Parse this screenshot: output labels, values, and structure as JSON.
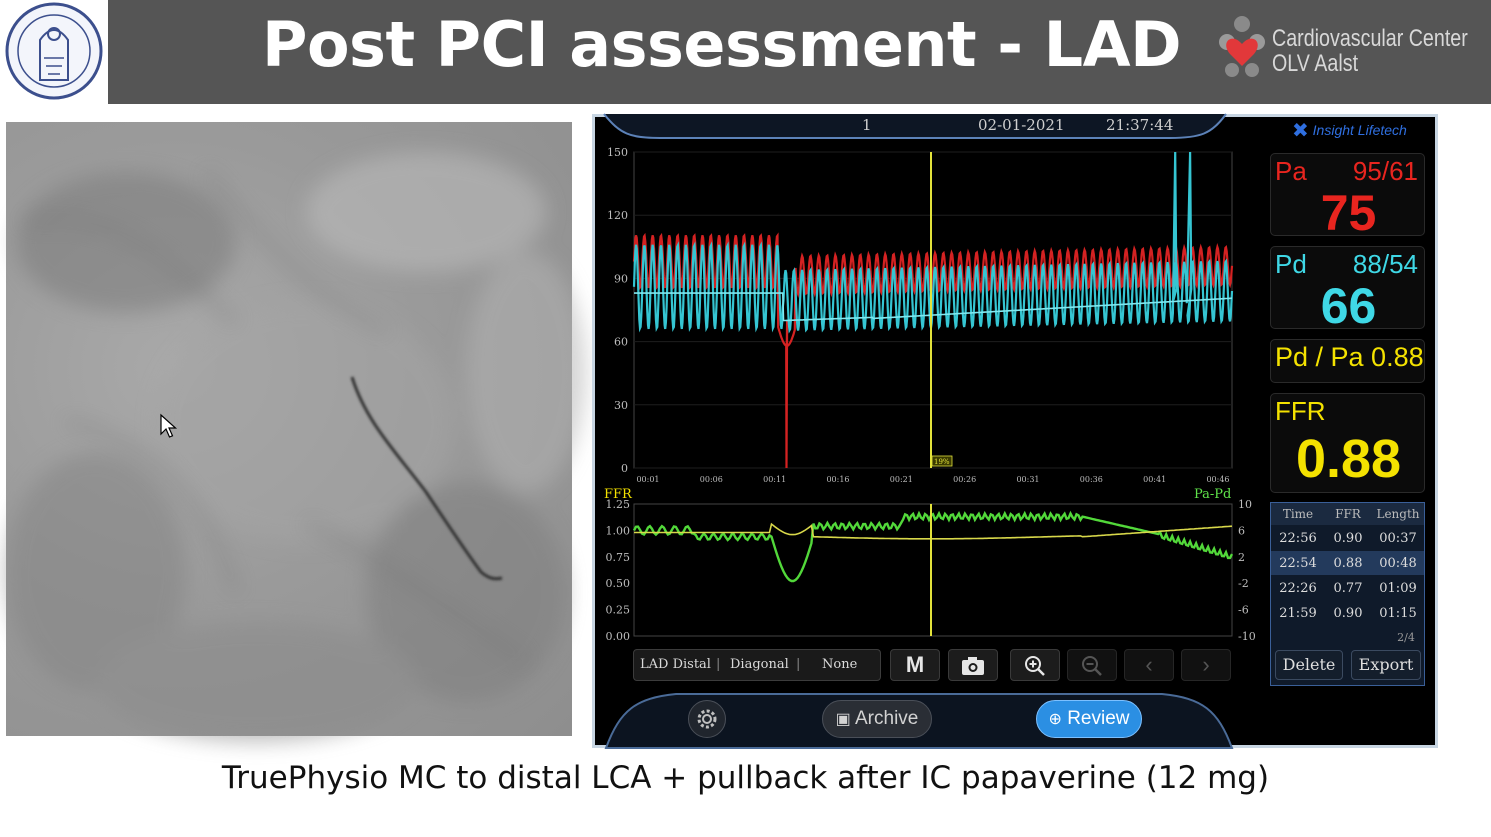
{
  "slide": {
    "title": "Post PCI assessment - LAD",
    "center_name_line1": "Cardiovascular Center",
    "center_name_line2": "OLV Aalst",
    "caption": "TruePhysio MC to distal LCA + pullback after IC papaverine (12 mg)"
  },
  "device": {
    "top_bar": {
      "index": "1",
      "date": "02-01-2021",
      "time": "21:37:44"
    },
    "brand": "Insight Lifetech",
    "pa": {
      "label": "Pa",
      "sys_dia": "95/61",
      "mean": "75",
      "color": "#e8251f"
    },
    "pd": {
      "label": "Pd",
      "sys_dia": "88/54",
      "mean": "66",
      "color": "#3fd8e6"
    },
    "pdpa": {
      "text": "Pd / Pa 0.88"
    },
    "ffr": {
      "label": "FFR",
      "value": "0.88",
      "color": "#f4e200"
    },
    "pressure_axis": [
      "150",
      "120",
      "90",
      "60",
      "30",
      "0"
    ],
    "time_axis": [
      "00:01",
      "00:06",
      "00:11",
      "00:16",
      "00:21",
      "00:26",
      "00:31",
      "00:36",
      "00:41",
      "00:46"
    ],
    "marker_label": "19%",
    "ffr_axis_title": "FFR",
    "pa_pd_axis_title": "Pa-Pd",
    "ffr_axis": [
      "1.25",
      "1.00",
      "0.75",
      "0.50",
      "0.25",
      "0.00"
    ],
    "pa_pd_axis": [
      "10",
      "6",
      "2",
      "-2",
      "-6",
      "-10"
    ],
    "vessel_tabs": [
      "LAD Distal",
      "Diagonal",
      "None"
    ],
    "table": {
      "headers": [
        "Time",
        "FFR",
        "Length"
      ],
      "rows": [
        [
          "22:56",
          "0.90",
          "00:37"
        ],
        [
          "22:54",
          "0.88",
          "00:48"
        ],
        [
          "22:26",
          "0.77",
          "01:09"
        ],
        [
          "21:59",
          "0.90",
          "01:15"
        ]
      ],
      "page": "2/4",
      "delete_label": "Delete",
      "export_label": "Export"
    },
    "mode_button": "M",
    "archive_label": "Archive",
    "review_label": "Review",
    "icons": [
      "settings-icon",
      "camera-icon",
      "zoom-in-icon",
      "zoom-out-icon",
      "chevron-left-icon",
      "chevron-right-icon"
    ]
  }
}
